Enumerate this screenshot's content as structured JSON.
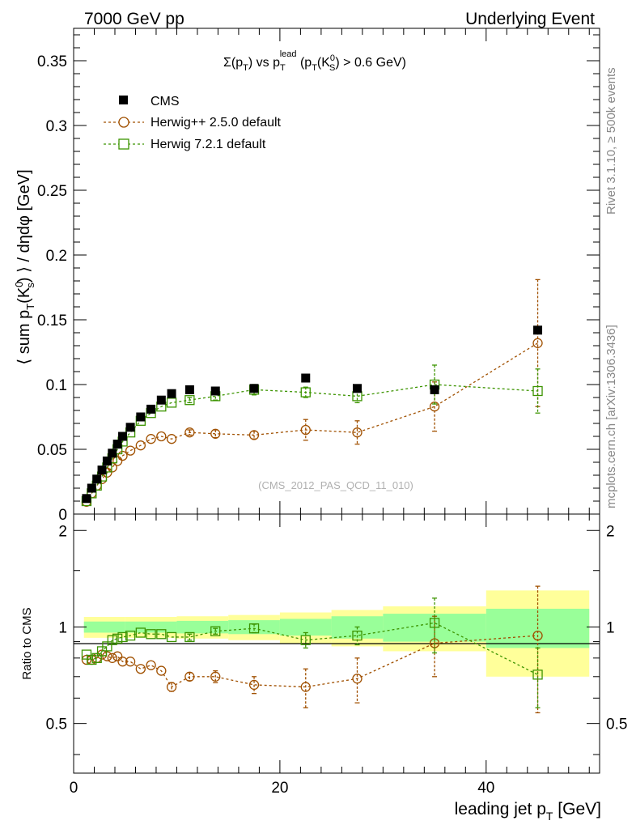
{
  "header": {
    "left": "7000 GeV pp",
    "right": "Underlying Event"
  },
  "side_labels": {
    "rivet": "Rivet 3.1.10, ≥ 500k events",
    "mcplots": "mcplots.cern.ch [arXiv:1306.3436]"
  },
  "colors": {
    "cms": "#000000",
    "herwigpp": "#a05000",
    "herwig7": "#3c9400",
    "band_yellow": "#ffff9a",
    "band_green": "#99ff99"
  },
  "chart_data": [
    {
      "type": "scatter",
      "title": "Σ(p_T) vs p_T^lead (p_T(K^0_S) > 0.6 GeV)",
      "title_parts": {
        "sigma": "Σ(p",
        "T1": "T",
        "vs": ") vs p",
        "T2": "T",
        "lead": "lead",
        "paren": " (p",
        "T3": "T",
        "k": "(K",
        "zero": "0",
        "S": "S",
        "tail": ") > 0.6 GeV)"
      },
      "watermark": "(CMS_2012_PAS_QCD_11_010)",
      "ylabel": "⟨ sum p_T(K^0_s) ⟩ / dηdφ [GeV]",
      "ylabel_parts": {
        "a": "⟨ sum p",
        "T": "T",
        "b": "(K",
        "zero": "0",
        "s": "s",
        "c": ") ⟩ / dηdφ [GeV]"
      },
      "xlim": [
        0,
        51
      ],
      "ylim": [
        0,
        0.375
      ],
      "yticks": [
        0,
        0.05,
        0.1,
        0.15,
        0.2,
        0.25,
        0.3,
        0.35
      ],
      "ytick_labels": [
        "0",
        "0.05",
        "0.1",
        "0.15",
        "0.2",
        "0.25",
        "0.3",
        "0.35"
      ],
      "legend": [
        "CMS",
        "Herwig++ 2.5.0 default",
        "Herwig 7.2.1 default"
      ],
      "series": [
        {
          "name": "CMS",
          "x": [
            1.25,
            1.75,
            2.25,
            2.75,
            3.25,
            3.75,
            4.25,
            4.75,
            5.5,
            6.5,
            7.5,
            8.5,
            9.5,
            11.25,
            13.75,
            17.5,
            22.5,
            27.5,
            35,
            45
          ],
          "values": [
            0.012,
            0.02,
            0.027,
            0.034,
            0.041,
            0.047,
            0.054,
            0.06,
            0.067,
            0.075,
            0.081,
            0.088,
            0.093,
            0.096,
            0.095,
            0.097,
            0.105,
            0.097,
            0.096,
            0.142
          ]
        },
        {
          "name": "Herwig++ 2.5.0 default",
          "x": [
            1.25,
            1.75,
            2.25,
            2.75,
            3.25,
            3.75,
            4.25,
            4.75,
            5.5,
            6.5,
            7.5,
            8.5,
            9.5,
            11.25,
            13.75,
            17.5,
            22.5,
            27.5,
            35,
            45
          ],
          "values": [
            0.0095,
            0.016,
            0.022,
            0.027,
            0.032,
            0.036,
            0.041,
            0.045,
            0.049,
            0.053,
            0.058,
            0.06,
            0.058,
            0.063,
            0.062,
            0.061,
            0.065,
            0.063,
            0.083,
            0.132
          ],
          "errors": [
            0,
            0,
            0,
            0,
            0,
            0,
            0,
            0,
            0,
            0,
            0,
            0,
            0,
            0.002,
            0.003,
            0.003,
            0.008,
            0.009,
            0.019,
            0.049
          ]
        },
        {
          "name": "Herwig 7.2.1 default",
          "x": [
            1.25,
            1.75,
            2.25,
            2.75,
            3.25,
            3.75,
            4.25,
            4.75,
            5.5,
            6.5,
            7.5,
            8.5,
            9.5,
            11.25,
            13.75,
            17.5,
            22.5,
            27.5,
            35,
            45
          ],
          "values": [
            0.01,
            0.016,
            0.022,
            0.029,
            0.036,
            0.043,
            0.05,
            0.056,
            0.063,
            0.072,
            0.078,
            0.083,
            0.086,
            0.088,
            0.091,
            0.096,
            0.094,
            0.091,
            0.1,
            0.095
          ],
          "errors": [
            0,
            0,
            0,
            0,
            0,
            0,
            0,
            0,
            0,
            0,
            0,
            0,
            0,
            0.002,
            0.003,
            0.004,
            0.004,
            0.005,
            0.015,
            0.017
          ]
        }
      ]
    },
    {
      "type": "scatter",
      "ylabel": "Ratio to CMS",
      "xlabel": "leading jet p_T [GeV]",
      "xlabel_parts": {
        "a": "leading jet p",
        "T": "T",
        "b": " [GeV]"
      },
      "xlim": [
        0,
        51
      ],
      "ylim": [
        0.35,
        2.25
      ],
      "xticks": [
        0,
        20,
        40
      ],
      "xtick_labels": [
        "0",
        "20",
        "40"
      ],
      "yticks": [
        0.5,
        1,
        2
      ],
      "ytick_labels": [
        "0.5",
        "1",
        "2"
      ],
      "bands": {
        "edges": [
          1,
          5,
          10,
          15,
          20,
          25,
          30,
          40,
          50
        ],
        "yellow_halfwidth": [
          0.075,
          0.075,
          0.08,
          0.09,
          0.11,
          0.13,
          0.16,
          0.3
        ],
        "green_halfwidth": [
          0.04,
          0.04,
          0.045,
          0.05,
          0.06,
          0.08,
          0.1,
          0.14
        ]
      },
      "series": [
        {
          "name": "Herwig++ 2.5.0 default",
          "x": [
            1.25,
            1.75,
            2.25,
            2.75,
            3.25,
            3.75,
            4.25,
            4.75,
            5.5,
            6.5,
            7.5,
            8.5,
            9.5,
            11.25,
            13.75,
            17.5,
            22.5,
            27.5,
            35,
            45
          ],
          "values": [
            0.79,
            0.79,
            0.8,
            0.82,
            0.81,
            0.8,
            0.81,
            0.78,
            0.78,
            0.74,
            0.76,
            0.73,
            0.65,
            0.7,
            0.7,
            0.66,
            0.65,
            0.69,
            0.89,
            0.94
          ],
          "errors": [
            0,
            0,
            0,
            0,
            0,
            0,
            0,
            0,
            0,
            0,
            0,
            0,
            0.02,
            0.02,
            0.03,
            0.04,
            0.09,
            0.11,
            0.19,
            0.4
          ]
        },
        {
          "name": "Herwig 7.2.1 default",
          "x": [
            1.25,
            1.75,
            2.25,
            2.75,
            3.25,
            3.75,
            4.25,
            4.75,
            5.5,
            6.5,
            7.5,
            8.5,
            9.5,
            11.25,
            13.75,
            17.5,
            22.5,
            27.5,
            35,
            45
          ],
          "values": [
            0.82,
            0.79,
            0.8,
            0.84,
            0.87,
            0.91,
            0.92,
            0.93,
            0.94,
            0.96,
            0.95,
            0.95,
            0.93,
            0.93,
            0.97,
            0.99,
            0.91,
            0.94,
            1.03,
            0.71
          ],
          "errors": [
            0,
            0,
            0,
            0,
            0,
            0,
            0,
            0,
            0,
            0,
            0,
            0,
            0,
            0.02,
            0.02,
            0.03,
            0.05,
            0.06,
            0.2,
            0.15
          ]
        }
      ]
    }
  ]
}
